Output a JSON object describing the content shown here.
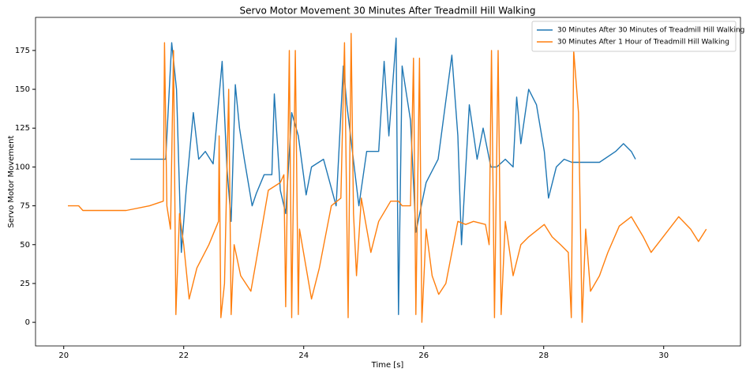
{
  "chart_data": {
    "type": "line",
    "title": "Servo Motor Movement 30 Minutes After Treadmill Hill Walking",
    "x_label": "Time [s]",
    "y_label": "Servo Motor Movement",
    "xlim": [
      19.53,
      31.28
    ],
    "ylim": [
      -15.2,
      196.3
    ],
    "xticks": [
      20,
      22,
      24,
      26,
      28,
      30
    ],
    "yticks": [
      0,
      25,
      50,
      75,
      100,
      125,
      150,
      175
    ],
    "grid": false,
    "legend": "upper right",
    "series": [
      {
        "name": "30 Minutes After 30 Minutes of Treadmill Hill Walking",
        "color": "#1f77b4",
        "x": [
          21.11,
          21.7,
          21.8,
          21.88,
          21.96,
          22.04,
          22.16,
          22.25,
          22.36,
          22.49,
          22.64,
          22.72,
          22.79,
          22.86,
          22.93,
          23.01,
          23.14,
          23.21,
          23.34,
          23.47,
          23.51,
          23.61,
          23.7,
          23.8,
          23.91,
          24.04,
          24.13,
          24.33,
          24.54,
          24.66,
          24.72,
          24.92,
          25.05,
          25.25,
          25.34,
          25.42,
          25.54,
          25.58,
          25.64,
          25.78,
          25.87,
          26.04,
          26.24,
          26.47,
          26.57,
          26.63,
          26.76,
          26.89,
          26.99,
          27.12,
          27.22,
          27.36,
          27.49,
          27.55,
          27.62,
          27.75,
          27.88,
          28.01,
          28.08,
          28.21,
          28.34,
          28.47,
          28.93,
          29.2,
          29.33,
          29.46,
          29.53
        ],
        "values": [
          105,
          105,
          180,
          150,
          45,
          85,
          135,
          105,
          110,
          102,
          168,
          100,
          65,
          153,
          125,
          105,
          75,
          83,
          95,
          95,
          147,
          85,
          70,
          135,
          120,
          82,
          100,
          105,
          75,
          165,
          140,
          75,
          110,
          110,
          168,
          120,
          183,
          5,
          165,
          130,
          58,
          90,
          105,
          172,
          120,
          50,
          140,
          105,
          125,
          100,
          100,
          105,
          100,
          145,
          115,
          150,
          140,
          110,
          80,
          100,
          105,
          103,
          103,
          110,
          115,
          110,
          105
        ]
      },
      {
        "name": "30 Minutes After 1 Hour of Treadmill Hill Walking",
        "color": "#ff7f0e",
        "x": [
          20.07,
          20.25,
          20.32,
          21.04,
          21.43,
          21.66,
          21.68,
          21.72,
          21.78,
          21.83,
          21.87,
          21.93,
          22.0,
          22.09,
          22.22,
          22.42,
          22.58,
          22.59,
          22.62,
          22.68,
          22.75,
          22.79,
          22.84,
          22.95,
          23.12,
          23.21,
          23.41,
          23.61,
          23.67,
          23.7,
          23.76,
          23.8,
          23.86,
          23.91,
          23.93,
          24.13,
          24.26,
          24.46,
          24.62,
          24.68,
          24.74,
          24.79,
          24.83,
          24.88,
          24.96,
          25.12,
          25.25,
          25.45,
          25.58,
          25.64,
          25.78,
          25.83,
          25.87,
          25.93,
          25.97,
          26.04,
          26.14,
          26.25,
          26.37,
          26.57,
          26.7,
          26.83,
          27.03,
          27.09,
          27.13,
          27.18,
          27.24,
          27.29,
          27.36,
          27.49,
          27.62,
          27.75,
          28.01,
          28.14,
          28.28,
          28.41,
          28.46,
          28.5,
          28.58,
          28.64,
          28.7,
          28.78,
          28.93,
          29.07,
          29.26,
          29.46,
          29.66,
          29.79,
          29.99,
          30.25,
          30.45,
          30.58,
          30.71
        ],
        "values": [
          75,
          75,
          72,
          72,
          75,
          78,
          180,
          75,
          60,
          175,
          5,
          70,
          50,
          15,
          35,
          50,
          65,
          120,
          3,
          25,
          150,
          5,
          50,
          30,
          20,
          40,
          85,
          90,
          95,
          10,
          175,
          3,
          175,
          5,
          60,
          15,
          35,
          75,
          80,
          180,
          3,
          186,
          70,
          30,
          80,
          45,
          65,
          78,
          78,
          75,
          75,
          170,
          5,
          170,
          0,
          60,
          30,
          18,
          25,
          65,
          63,
          65,
          63,
          50,
          175,
          3,
          175,
          5,
          65,
          30,
          50,
          55,
          63,
          55,
          50,
          45,
          3,
          175,
          135,
          0,
          60,
          20,
          30,
          45,
          62,
          68,
          55,
          45,
          55,
          68,
          60,
          52,
          60
        ]
      }
    ]
  }
}
